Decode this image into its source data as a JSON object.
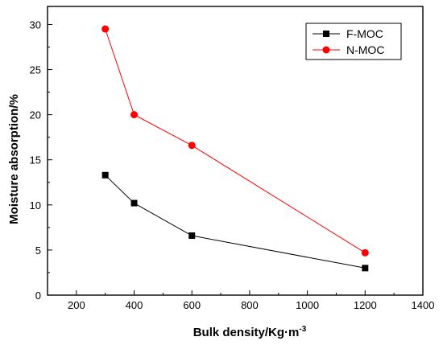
{
  "chart_data": {
    "type": "line",
    "xlabel": "Bulk density/Kg·m",
    "xlabel_sup": "-3",
    "ylabel": "Moisture absorption/%",
    "xlim": [
      100,
      1400
    ],
    "ylim": [
      0,
      32
    ],
    "x_ticks": [
      200,
      400,
      600,
      800,
      1000,
      1200,
      1400
    ],
    "y_ticks": [
      0,
      5,
      10,
      15,
      20,
      25,
      30
    ],
    "grid": false,
    "legend_position": "top-right",
    "series": [
      {
        "name": "F-MOC",
        "marker": "square",
        "color": "#000000",
        "x": [
          300,
          400,
          600,
          1200
        ],
        "y": [
          13.3,
          10.2,
          6.6,
          3.0
        ]
      },
      {
        "name": "N-MOC",
        "marker": "circle",
        "color": "#ff0000",
        "x": [
          300,
          400,
          600,
          1200
        ],
        "y": [
          29.5,
          20.0,
          16.6,
          4.7
        ]
      }
    ]
  }
}
